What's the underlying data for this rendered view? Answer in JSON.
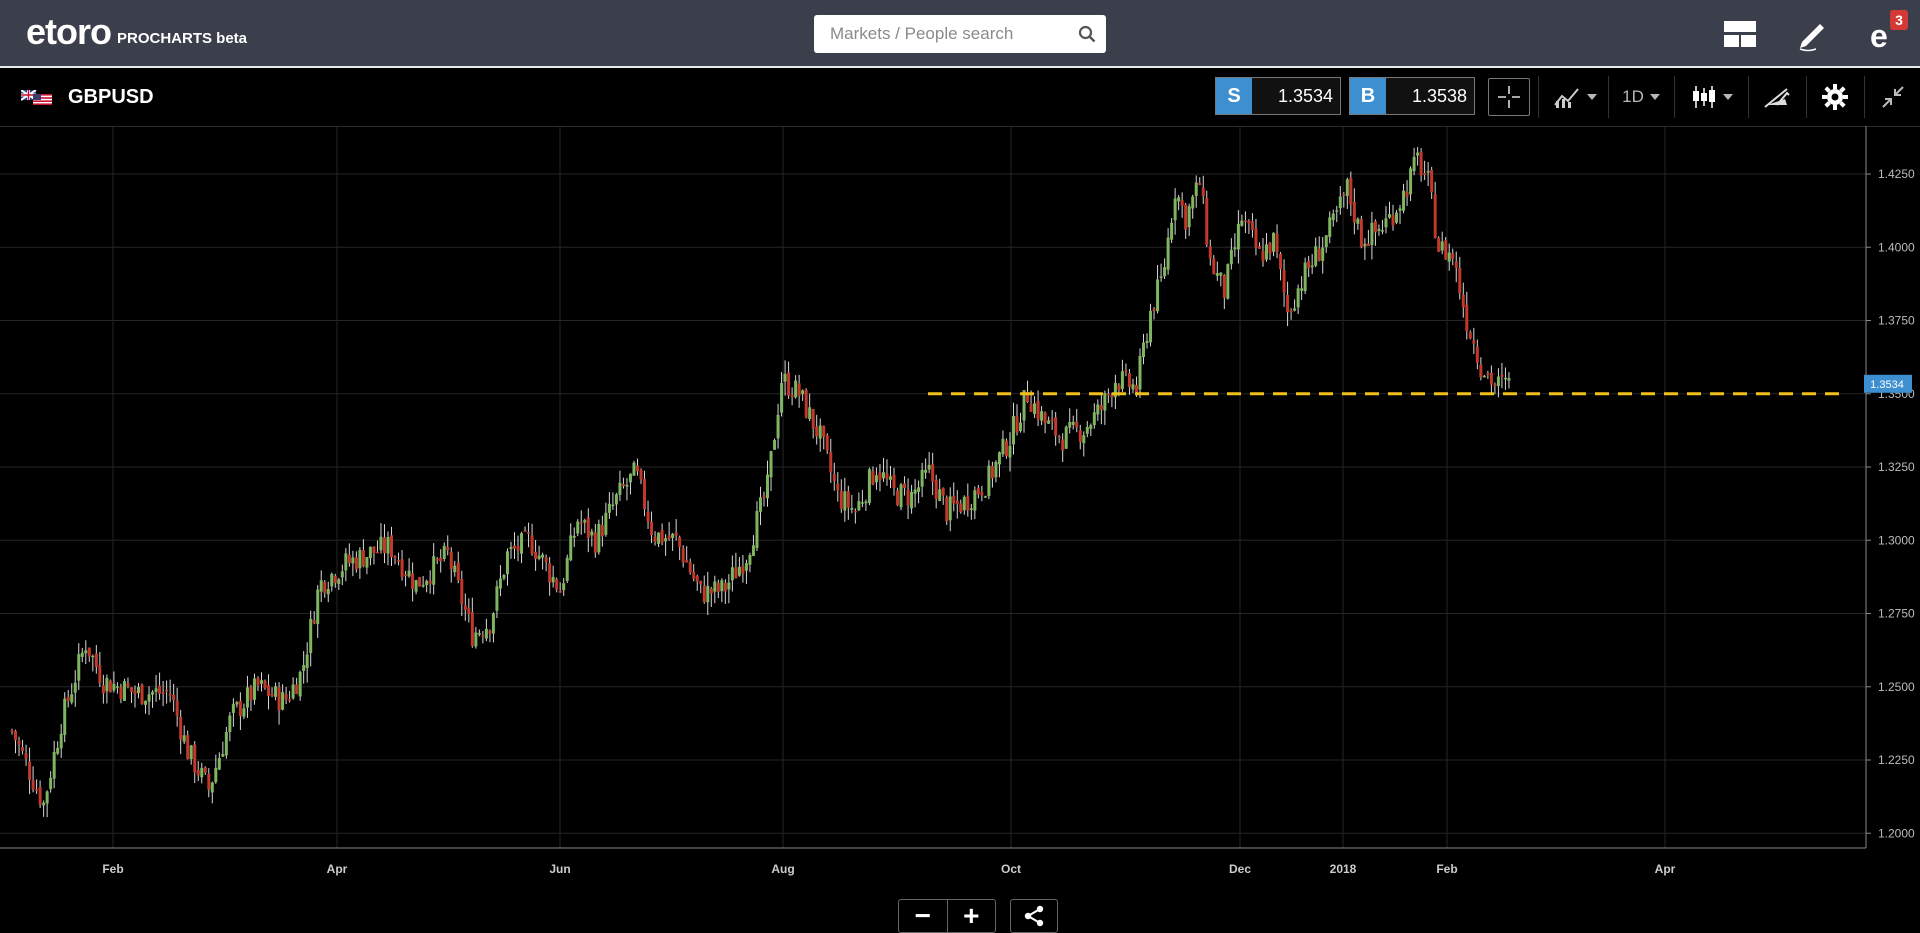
{
  "brand": {
    "name": "eToro",
    "wordmark": "etoro",
    "product": "PROCHARTS beta"
  },
  "search": {
    "placeholder": "Markets / People search"
  },
  "header_icons": [
    "layout-icon",
    "edit-icon",
    "notifications-icon"
  ],
  "notifications": {
    "count": "3"
  },
  "instrument": {
    "symbol": "GBPUSD",
    "sell": {
      "label": "S",
      "price": "1.3534"
    },
    "buy": {
      "label": "B",
      "price": "1.3538"
    },
    "timeframe": "1D"
  },
  "colors": {
    "up": "#7fb55f",
    "down": "#c0392b",
    "accent": "#3d8fcf",
    "line": "#f2c01c",
    "grid": "#262626"
  },
  "chart_data": {
    "type": "candlestick",
    "symbol": "GBPUSD",
    "timeframe": "1D",
    "y_ticks": [
      "1.4250",
      "1.4000",
      "1.3750",
      "1.3500",
      "1.3250",
      "1.3000",
      "1.2750",
      "1.2500",
      "1.2250",
      "1.2000"
    ],
    "y_range": [
      1.1975,
      1.4375
    ],
    "x_ticks": [
      "Feb",
      "Apr",
      "Jun",
      "Aug",
      "Oct",
      "Dec",
      "2018",
      "Feb",
      "Apr"
    ],
    "current_price_label": "1.3534",
    "horizontal_line": {
      "value": 1.35,
      "style": "dashed"
    },
    "close_path": [
      {
        "d": 0,
        "c": 1.235
      },
      {
        "d": 18,
        "c": 1.21
      },
      {
        "d": 28,
        "c": 1.238
      },
      {
        "d": 42,
        "c": 1.265
      },
      {
        "d": 52,
        "c": 1.252
      },
      {
        "d": 70,
        "c": 1.248
      },
      {
        "d": 90,
        "c": 1.248
      },
      {
        "d": 100,
        "c": 1.228
      },
      {
        "d": 112,
        "c": 1.215
      },
      {
        "d": 125,
        "c": 1.24
      },
      {
        "d": 140,
        "c": 1.25
      },
      {
        "d": 155,
        "c": 1.245
      },
      {
        "d": 165,
        "c": 1.255
      },
      {
        "d": 175,
        "c": 1.285
      },
      {
        "d": 190,
        "c": 1.292
      },
      {
        "d": 205,
        "c": 1.296
      },
      {
        "d": 215,
        "c": 1.298
      },
      {
        "d": 230,
        "c": 1.285
      },
      {
        "d": 248,
        "c": 1.295
      },
      {
        "d": 262,
        "c": 1.268
      },
      {
        "d": 272,
        "c": 1.272
      },
      {
        "d": 282,
        "c": 1.295
      },
      {
        "d": 295,
        "c": 1.3
      },
      {
        "d": 312,
        "c": 1.283
      },
      {
        "d": 322,
        "c": 1.307
      },
      {
        "d": 332,
        "c": 1.3
      },
      {
        "d": 345,
        "c": 1.315
      },
      {
        "d": 355,
        "c": 1.323
      },
      {
        "d": 365,
        "c": 1.302
      },
      {
        "d": 378,
        "c": 1.3
      },
      {
        "d": 392,
        "c": 1.282
      },
      {
        "d": 405,
        "c": 1.283
      },
      {
        "d": 418,
        "c": 1.295
      },
      {
        "d": 430,
        "c": 1.318
      },
      {
        "d": 438,
        "c": 1.355
      },
      {
        "d": 448,
        "c": 1.35
      },
      {
        "d": 460,
        "c": 1.335
      },
      {
        "d": 470,
        "c": 1.315
      },
      {
        "d": 480,
        "c": 1.31
      },
      {
        "d": 492,
        "c": 1.325
      },
      {
        "d": 502,
        "c": 1.316
      },
      {
        "d": 512,
        "c": 1.315
      },
      {
        "d": 522,
        "c": 1.323
      },
      {
        "d": 532,
        "c": 1.31
      },
      {
        "d": 542,
        "c": 1.313
      },
      {
        "d": 555,
        "c": 1.32
      },
      {
        "d": 568,
        "c": 1.335
      },
      {
        "d": 578,
        "c": 1.35
      },
      {
        "d": 588,
        "c": 1.34
      },
      {
        "d": 598,
        "c": 1.335
      },
      {
        "d": 610,
        "c": 1.338
      },
      {
        "d": 620,
        "c": 1.345
      },
      {
        "d": 628,
        "c": 1.355
      },
      {
        "d": 640,
        "c": 1.352
      },
      {
        "d": 648,
        "c": 1.378
      },
      {
        "d": 655,
        "c": 1.39
      },
      {
        "d": 662,
        "c": 1.42
      },
      {
        "d": 668,
        "c": 1.41
      },
      {
        "d": 676,
        "c": 1.422
      },
      {
        "d": 682,
        "c": 1.395
      },
      {
        "d": 690,
        "c": 1.385
      },
      {
        "d": 700,
        "c": 1.41
      },
      {
        "d": 710,
        "c": 1.397
      },
      {
        "d": 718,
        "c": 1.402
      },
      {
        "d": 726,
        "c": 1.378
      },
      {
        "d": 735,
        "c": 1.39
      },
      {
        "d": 745,
        "c": 1.4
      },
      {
        "d": 752,
        "c": 1.408
      },
      {
        "d": 760,
        "c": 1.42
      },
      {
        "d": 768,
        "c": 1.403
      },
      {
        "d": 776,
        "c": 1.405
      },
      {
        "d": 784,
        "c": 1.41
      },
      {
        "d": 792,
        "c": 1.418
      },
      {
        "d": 800,
        "c": 1.43
      },
      {
        "d": 806,
        "c": 1.422
      },
      {
        "d": 812,
        "c": 1.4
      },
      {
        "d": 820,
        "c": 1.397
      },
      {
        "d": 828,
        "c": 1.375
      },
      {
        "d": 836,
        "c": 1.36
      },
      {
        "d": 844,
        "c": 1.353
      },
      {
        "d": 852,
        "c": 1.353
      }
    ]
  },
  "chart_controls": {
    "zoom_out": "−",
    "zoom_in": "+"
  }
}
